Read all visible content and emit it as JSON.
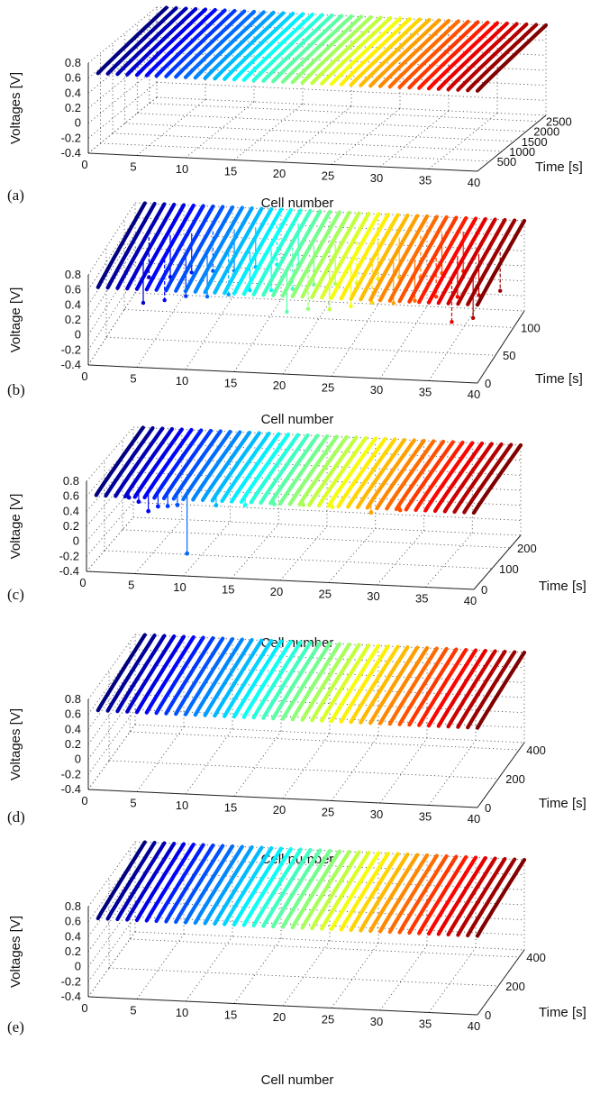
{
  "chart_data": [
    {
      "panel_label": "(a)",
      "type": "line",
      "projection": "3d",
      "xlabel": "Cell number",
      "ylabel": "Time [s]",
      "zlabel": "Voltages [V]",
      "xlim": [
        0,
        40
      ],
      "ylim": [
        0,
        2800
      ],
      "zlim": [
        -0.4,
        0.8
      ],
      "x_ticks": [
        "0",
        "5",
        "10",
        "15",
        "20",
        "25",
        "30",
        "35",
        "40"
      ],
      "y_ticks": [
        "500",
        "1000",
        "1500",
        "2000",
        "2500"
      ],
      "z_ticks": [
        "-0.4",
        "-0.2",
        "0",
        "0.2",
        "0.4",
        "0.6",
        "0.8"
      ],
      "grid": true,
      "colormap": "jet",
      "cells": 40,
      "voltage_start": 0.67,
      "voltage_end": 0.8
    },
    {
      "panel_label": "(b)",
      "type": "line",
      "projection": "3d",
      "xlabel": "Cell number",
      "ylabel": "Time [s]",
      "zlabel": "Voltage [V]",
      "xlim": [
        0,
        40
      ],
      "ylim": [
        0,
        130
      ],
      "zlim": [
        -0.4,
        0.8
      ],
      "x_ticks": [
        "0",
        "5",
        "10",
        "15",
        "20",
        "25",
        "30",
        "35",
        "40"
      ],
      "y_ticks": [
        "0",
        "50",
        "100"
      ],
      "z_ticks": [
        "-0.4",
        "-0.2",
        "0",
        "0.2",
        "0.4",
        "0.6",
        "0.8"
      ],
      "grid": true,
      "colormap": "jet",
      "cells": 40,
      "voltage_start": 0.64,
      "voltage_end": 0.8,
      "drop_voltage": 0.2
    },
    {
      "panel_label": "(c)",
      "type": "line",
      "projection": "3d",
      "xlabel": "Cell number",
      "ylabel": "Time [s]",
      "zlabel": "Voltage [V]",
      "xlim": [
        0,
        40
      ],
      "ylim": [
        0,
        260
      ],
      "zlim": [
        -0.4,
        0.8
      ],
      "x_ticks": [
        "0",
        "5",
        "10",
        "15",
        "20",
        "25",
        "30",
        "35",
        "40"
      ],
      "y_ticks": [
        "0",
        "100",
        "200"
      ],
      "z_ticks": [
        "-0.4",
        "-0.2",
        "0",
        "0.2",
        "0.4",
        "0.6",
        "0.8"
      ],
      "grid": true,
      "colormap": "jet",
      "cells": 40,
      "voltage_start": 0.62,
      "voltage_end": 0.8,
      "dip_cells": [
        4,
        5,
        6,
        7,
        8,
        9,
        10,
        13,
        16,
        19,
        22,
        25,
        29,
        32
      ],
      "dip_min_voltages": [
        0.55,
        0.5,
        0.38,
        0.45,
        0.46,
        0.48,
        -0.16,
        0.5,
        0.52,
        0.55,
        0.56,
        0.55,
        0.5,
        0.55
      ]
    },
    {
      "panel_label": "(d)",
      "type": "line",
      "projection": "3d",
      "xlabel": "Cell number",
      "ylabel": "Time [s]",
      "zlabel": "Voltages [V]",
      "xlim": [
        0,
        40
      ],
      "ylim": [
        0,
        450
      ],
      "zlim": [
        -0.4,
        0.8
      ],
      "x_ticks": [
        "0",
        "5",
        "10",
        "15",
        "20",
        "25",
        "30",
        "35",
        "40"
      ],
      "y_ticks": [
        "0",
        "200",
        "400"
      ],
      "z_ticks": [
        "-0.4",
        "-0.2",
        "0",
        "0.2",
        "0.4",
        "0.6",
        "0.8"
      ],
      "grid": true,
      "colormap": "jet",
      "cells": 40,
      "voltage_start": 0.66,
      "voltage_end": 0.8
    },
    {
      "panel_label": "(e)",
      "type": "line",
      "projection": "3d",
      "xlabel": "Cell number",
      "ylabel": "Time [s]",
      "zlabel": "Voltages [V]",
      "xlim": [
        0,
        40
      ],
      "ylim": [
        0,
        450
      ],
      "zlim": [
        -0.4,
        0.8
      ],
      "x_ticks": [
        "0",
        "5",
        "10",
        "15",
        "20",
        "25",
        "30",
        "35",
        "40"
      ],
      "y_ticks": [
        "0",
        "200",
        "400"
      ],
      "z_ticks": [
        "-0.4",
        "-0.2",
        "0",
        "0.2",
        "0.4",
        "0.6",
        "0.8"
      ],
      "grid": true,
      "colormap": "jet",
      "cells": 40,
      "voltage_start": 0.65,
      "voltage_end": 0.8
    }
  ]
}
